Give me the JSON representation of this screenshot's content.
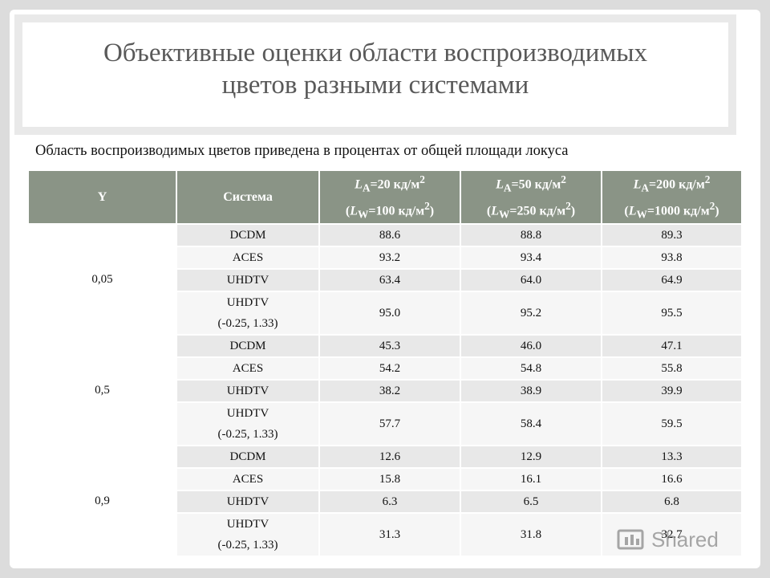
{
  "title_line1": "Объективные оценки области воспроизводимых",
  "title_line2": "цветов разными системами",
  "subtitle": "Область воспроизводимых цветов приведена в процентах от общей площади локуса",
  "headers": {
    "y": "Y",
    "system": "Система",
    "c1_a": "LA=20 кд/м2",
    "c1_b": "(LW=100 кд/м2)",
    "c2_a": "LA=50 кд/м2",
    "c2_b": "(LW=250 кд/м2)",
    "c3_a": "LA=200 кд/м2",
    "c3_b": "(LW=1000 кд/м2)"
  },
  "groups": [
    {
      "y": "0,05",
      "rows": [
        {
          "system": "DCDM",
          "v": [
            "88.6",
            "88.8",
            "89.3"
          ]
        },
        {
          "system": "ACES",
          "v": [
            "93.2",
            "93.4",
            "93.8"
          ]
        },
        {
          "system": "UHDTV",
          "v": [
            "63.4",
            "64.0",
            "64.9"
          ]
        },
        {
          "system": "UHDTV",
          "system2": "(-0.25, 1.33)",
          "v": [
            "95.0",
            "95.2",
            "95.5"
          ]
        }
      ]
    },
    {
      "y": "0,5",
      "rows": [
        {
          "system": "DCDM",
          "v": [
            "45.3",
            "46.0",
            "47.1"
          ]
        },
        {
          "system": "ACES",
          "v": [
            "54.2",
            "54.8",
            "55.8"
          ]
        },
        {
          "system": "UHDTV",
          "v": [
            "38.2",
            "38.9",
            "39.9"
          ]
        },
        {
          "system": "UHDTV",
          "system2": "(-0.25, 1.33)",
          "v": [
            "57.7",
            "58.4",
            "59.5"
          ]
        }
      ]
    },
    {
      "y": "0,9",
      "rows": [
        {
          "system": "DCDM",
          "v": [
            "12.6",
            "12.9",
            "13.3"
          ]
        },
        {
          "system": "ACES",
          "v": [
            "15.8",
            "16.1",
            "16.6"
          ]
        },
        {
          "system": "UHDTV",
          "v": [
            "6.3",
            "6.5",
            "6.8"
          ]
        },
        {
          "system": "UHDTV",
          "system2": "(-0.25, 1.33)",
          "v": [
            "31.3",
            "31.8",
            "32.7"
          ]
        }
      ]
    }
  ],
  "watermark": "Shared"
}
